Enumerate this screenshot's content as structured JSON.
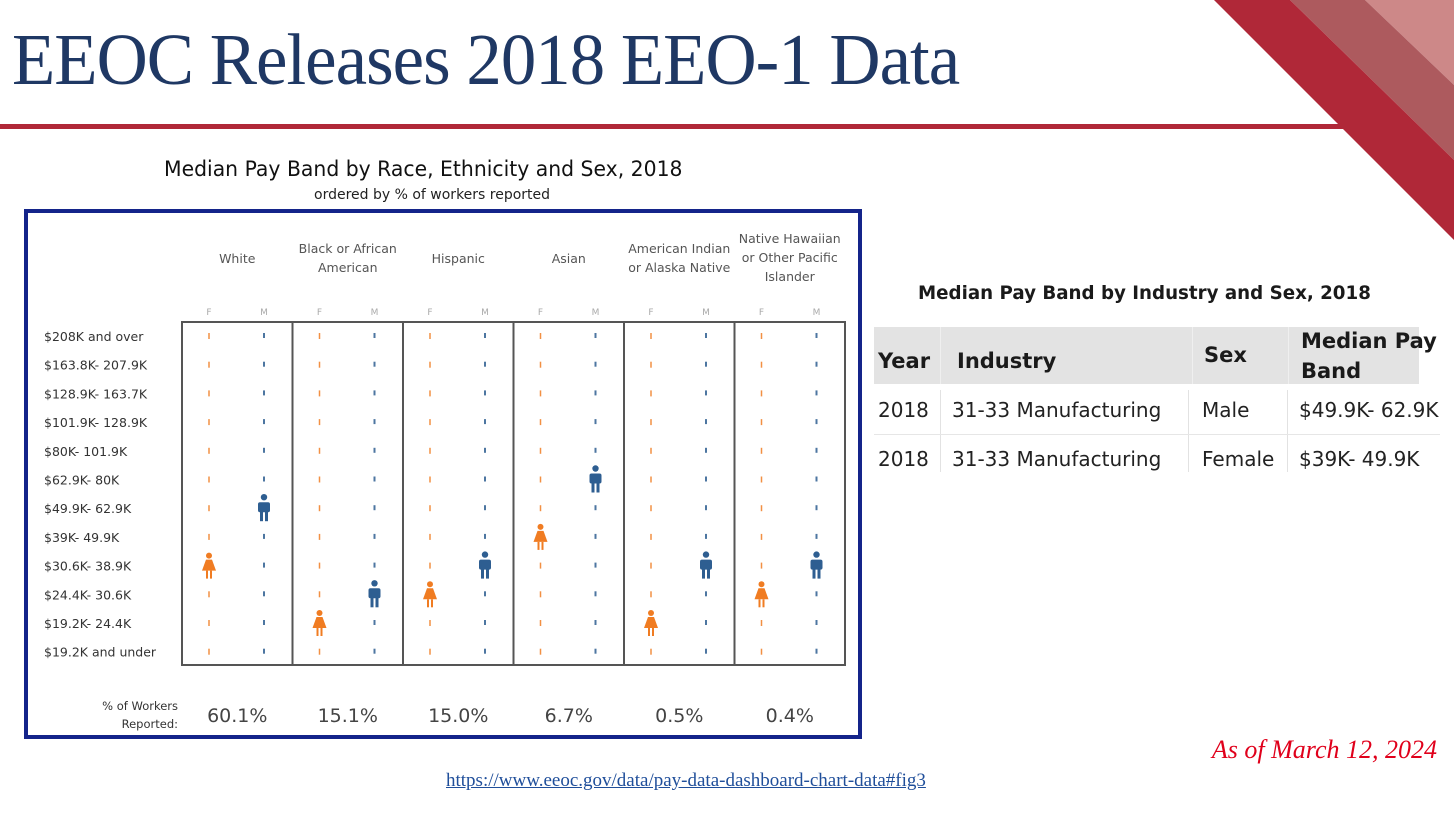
{
  "slide": {
    "title": "EEOC Releases 2018 EEO-1 Data",
    "as_of": "As of March 12, 2024",
    "source_link": "https://www.eeoc.gov/data/pay-data-dashboard-chart-data#fig3"
  },
  "colors": {
    "title_blue": "#1f3864",
    "accent_red": "#b02838",
    "frame_blue": "#14248a",
    "female_orange": "#f07c22",
    "male_blue": "#2e5e91"
  },
  "chart_data": {
    "type": "pictogram",
    "title": "Median Pay Band by Race, Ethnicity and Sex, 2018",
    "subtitle": "ordered by % of workers reported",
    "sex_labels": [
      "F",
      "M"
    ],
    "pay_bands": [
      "$208K and over",
      "$163.8K- 207.9K",
      "$128.9K- 163.7K",
      "$101.9K- 128.9K",
      "$80K- 101.9K",
      "$62.9K- 80K",
      "$49.9K- 62.9K",
      "$39K- 49.9K",
      "$30.6K- 38.9K",
      "$24.4K- 30.6K",
      "$19.2K- 24.4K",
      "$19.2K and under"
    ],
    "groups": [
      {
        "name": [
          "White"
        ],
        "pct_workers": "60.1%",
        "female_median": "$30.6K- 38.9K",
        "male_median": "$49.9K- 62.9K"
      },
      {
        "name": [
          "Black or African",
          "American"
        ],
        "pct_workers": "15.1%",
        "female_median": "$19.2K- 24.4K",
        "male_median": "$24.4K- 30.6K"
      },
      {
        "name": [
          "Hispanic"
        ],
        "pct_workers": "15.0%",
        "female_median": "$24.4K- 30.6K",
        "male_median": "$30.6K- 38.9K"
      },
      {
        "name": [
          "Asian"
        ],
        "pct_workers": "6.7%",
        "female_median": "$39K- 49.9K",
        "male_median": "$62.9K- 80K"
      },
      {
        "name": [
          "American Indian",
          "or Alaska Native"
        ],
        "pct_workers": "0.5%",
        "female_median": "$19.2K- 24.4K",
        "male_median": "$30.6K- 38.9K"
      },
      {
        "name": [
          "Native Hawaiian",
          "or Other Pacific",
          "Islander"
        ],
        "pct_workers": "0.4%",
        "female_median": "$24.4K- 30.6K",
        "male_median": "$30.6K- 38.9K"
      }
    ],
    "pct_label": [
      "% of Workers",
      "Reported:"
    ]
  },
  "industry_table": {
    "title": "Median Pay Band by Industry and Sex, 2018",
    "headers": [
      "Year",
      "Industry",
      "Sex",
      "Median Pay",
      "Band"
    ],
    "rows": [
      [
        "2018",
        "31-33 Manufacturing",
        "Male",
        "$49.9K- 62.9K"
      ],
      [
        "2018",
        "31-33 Manufacturing",
        "Female",
        "$39K- 49.9K"
      ]
    ]
  }
}
